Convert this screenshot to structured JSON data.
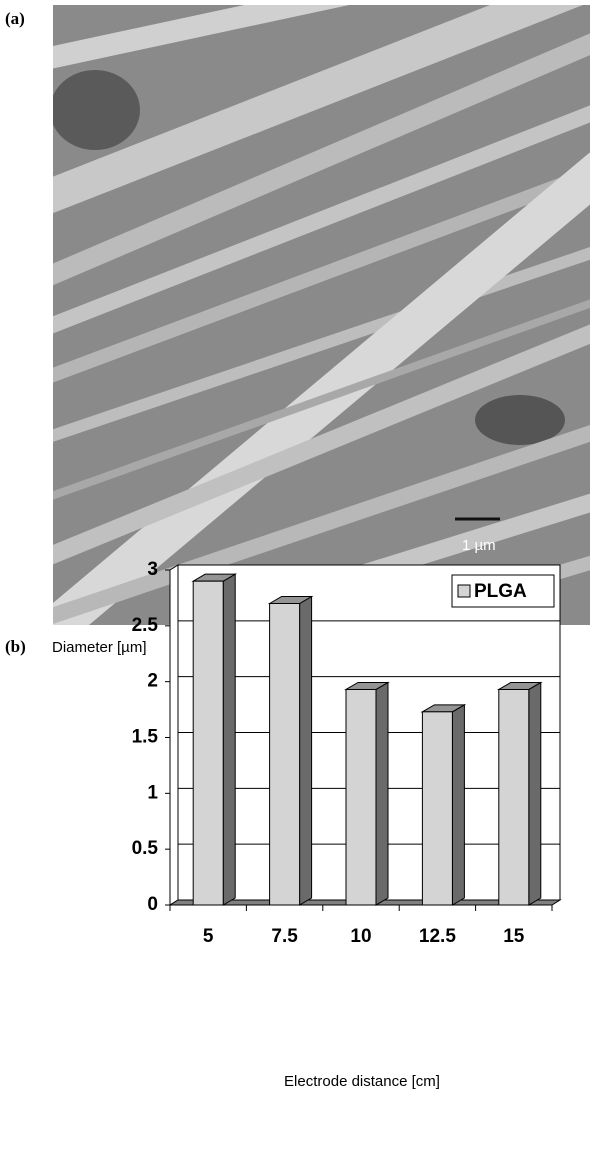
{
  "figure": {
    "panel_a_label": "(a)",
    "scale_bar": "1 µm",
    "panel_b_label": "(b)"
  },
  "chart_data": {
    "type": "bar",
    "y_label": "Diameter [µm]",
    "x_label": "Electrode distance [cm]",
    "categories": [
      "5",
      "7.5",
      "10",
      "12.5",
      "15"
    ],
    "series": [
      {
        "name": "PLGA",
        "color": "#d4d4d4",
        "values": [
          2.9,
          2.7,
          1.93,
          1.73,
          1.93
        ]
      }
    ],
    "ylim": [
      0,
      3
    ],
    "yticks": [
      0,
      0.5,
      1,
      1.5,
      2,
      2.5,
      3
    ],
    "grid": true,
    "legend": "top-right"
  }
}
